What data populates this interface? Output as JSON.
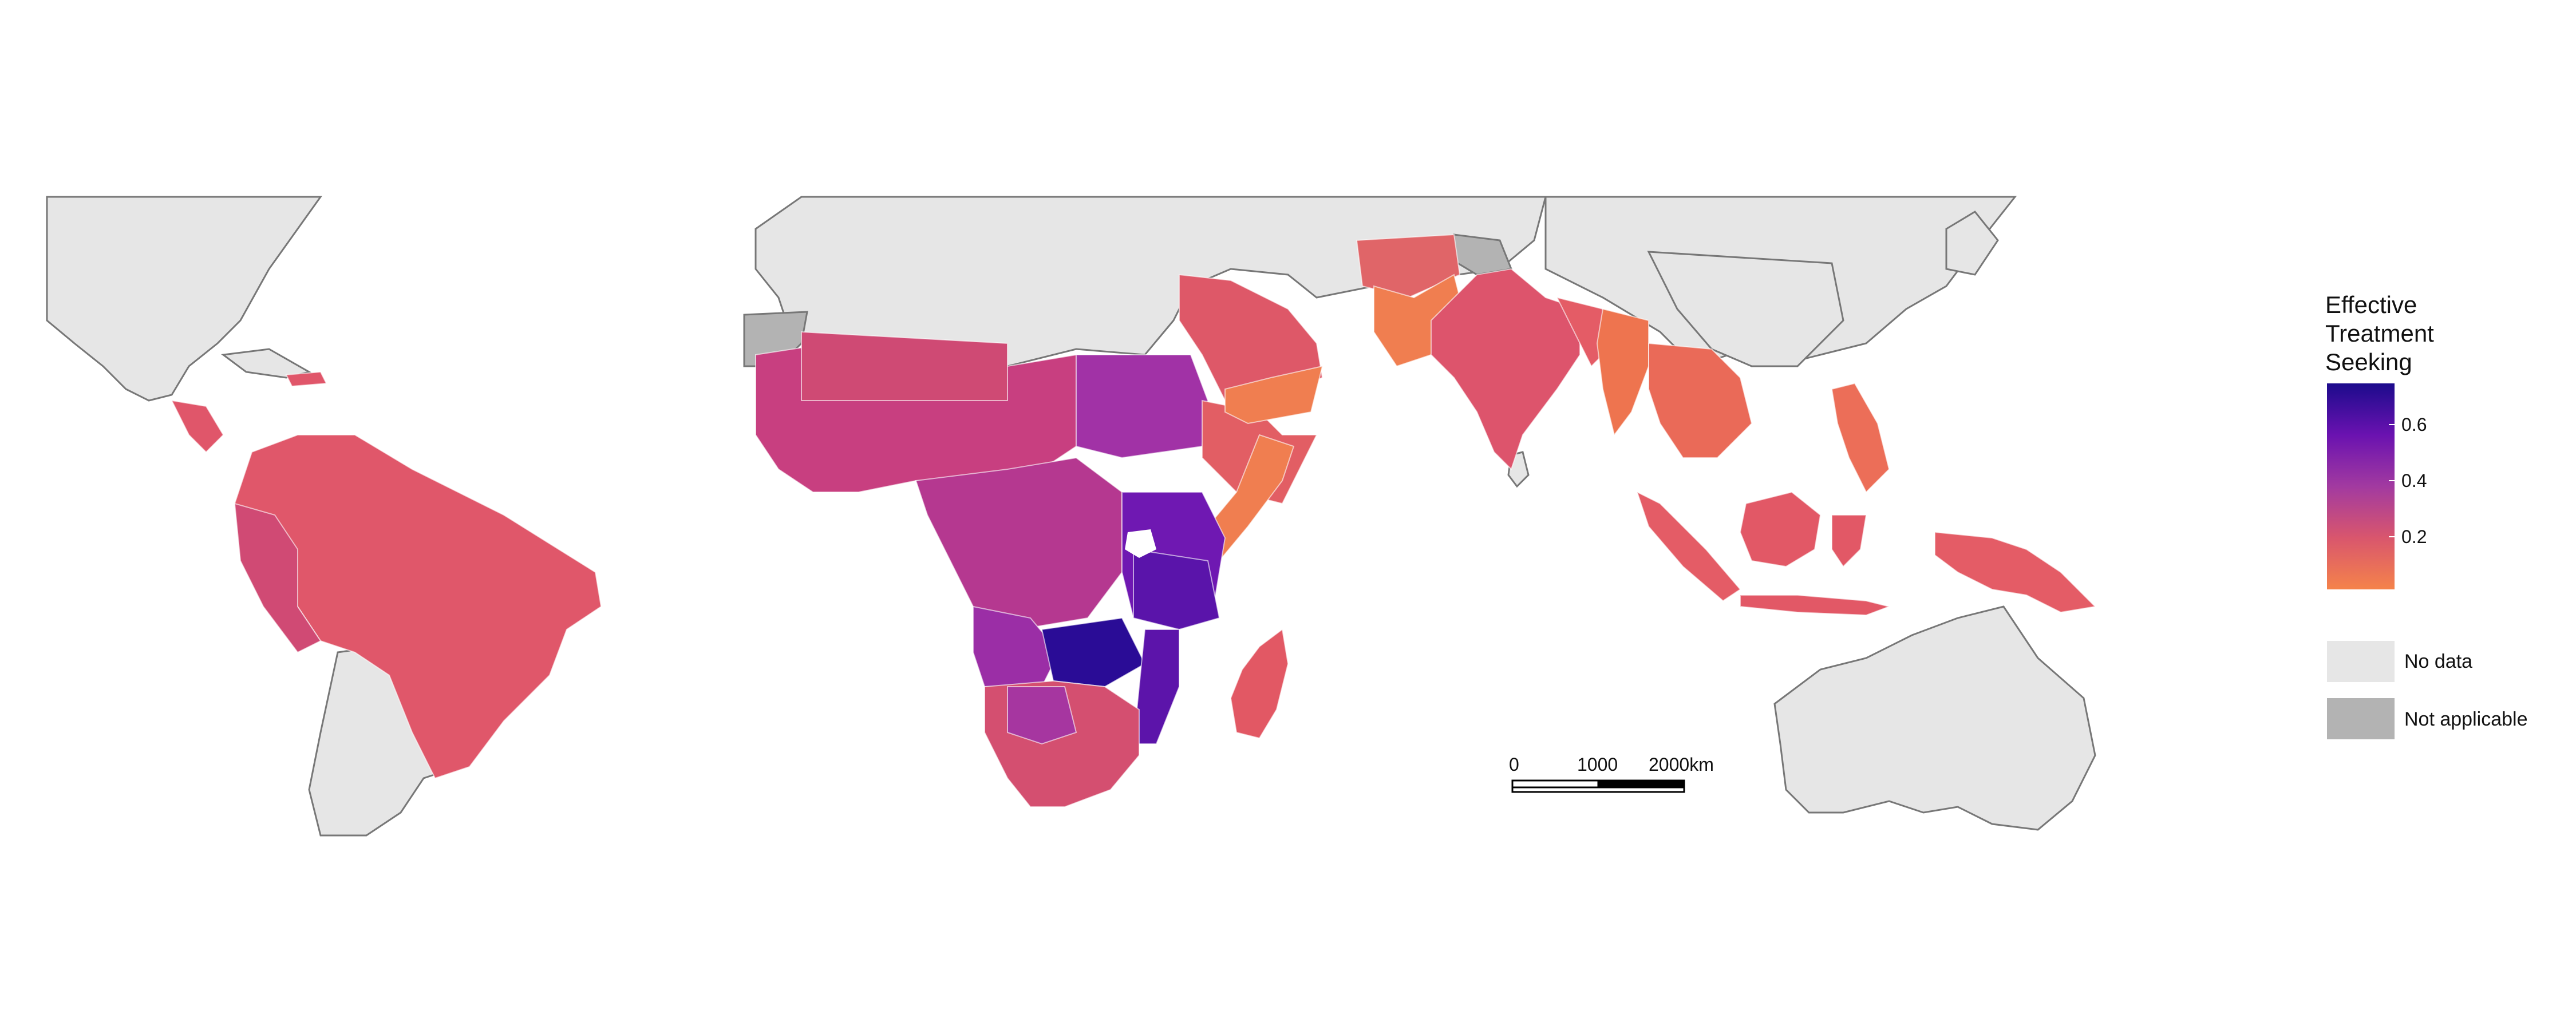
{
  "legend": {
    "title_lines": [
      "Effective",
      "Treatment",
      "Seeking"
    ],
    "ticks": [
      "0.6",
      "0.4",
      "0.2"
    ],
    "tick_values": [
      0.6,
      0.4,
      0.2
    ],
    "scale_min": 0.02,
    "scale_max": 0.73,
    "gradient_colors": [
      "#1c0b8c",
      "#6a12b0",
      "#a23aa0",
      "#d9566d",
      "#f5834a"
    ],
    "no_data_label": "No data",
    "no_data_color": "#e6e6e6",
    "not_applicable_label": "Not applicable",
    "not_applicable_color": "#b3b3b3"
  },
  "scale_bar": {
    "labels": [
      "0",
      "1000",
      "2000km"
    ]
  },
  "map": {
    "ocean_color": "#ffffff",
    "border_color": "#666666",
    "regions": [
      "Central America",
      "South America",
      "Africa",
      "Madagascar",
      "Arabian Peninsula",
      "South Asia",
      "Southeast Asia",
      "Papua New Guinea"
    ]
  }
}
